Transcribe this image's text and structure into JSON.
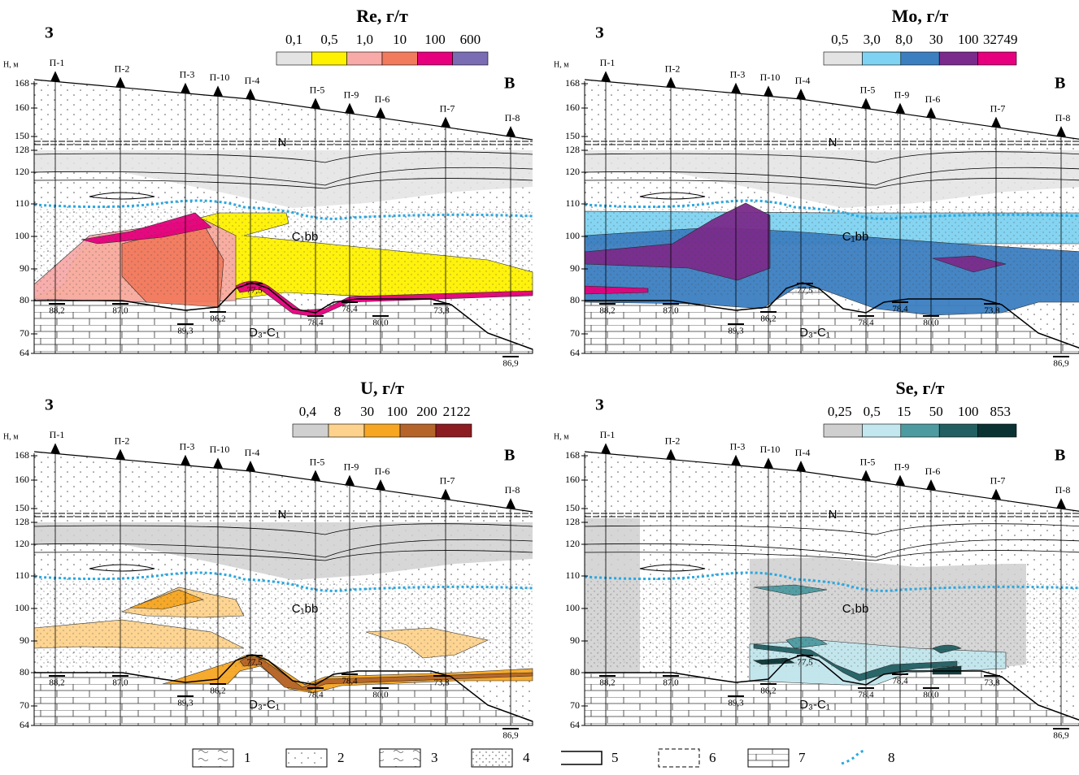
{
  "panels": [
    {
      "title": "Re, г/т",
      "scale": [
        "0,1",
        "0,5",
        "1,0",
        "10",
        "100",
        "600"
      ],
      "colors": [
        "#e3e3e3",
        "#fff200",
        "#f7aaa8",
        "#f27b5e",
        "#e6007e",
        "#7a6db3"
      ]
    },
    {
      "title": "Mo, г/т",
      "scale": [
        "0,5",
        "3,0",
        "8,0",
        "30",
        "100",
        "32749"
      ],
      "colors": [
        "#e3e3e3",
        "#7fd3f2",
        "#3c7fc1",
        "#7b2b8c",
        "#e6007e"
      ]
    },
    {
      "title": "U, г/т",
      "scale": [
        "0,4",
        "8",
        "30",
        "100",
        "200",
        "2122"
      ],
      "colors": [
        "#d0d0d0",
        "#fdd28c",
        "#f6a623",
        "#b5652a",
        "#8c1c22"
      ]
    },
    {
      "title": "Se, г/т",
      "scale": [
        "0,25",
        "0,5",
        "15",
        "50",
        "100",
        "853"
      ],
      "colors": [
        "#cfcfcf",
        "#c2e7ee",
        "#4d9ba1",
        "#215f62",
        "#0a3232"
      ]
    }
  ],
  "west": "З",
  "east": "В",
  "axis_title": "Н, м",
  "depth_ticks": [
    "168",
    "160",
    "150",
    "128",
    "120",
    "110",
    "100",
    "90",
    "80",
    "70",
    "64"
  ],
  "wells": [
    "П-1",
    "П-2",
    "П-3",
    "П-10",
    "П-4",
    "П-5",
    "П-9",
    "П-6",
    "П-7",
    "П-8"
  ],
  "well_depths": [
    "88,2",
    "87,0",
    "89,3",
    "86,2",
    "77,5",
    "78,4",
    "78,4",
    "80,0",
    "73,8",
    "86,9"
  ],
  "units": {
    "top": "N",
    "middle": "C₁bb",
    "bottom": "D₃-C₁"
  },
  "legend": [
    "1",
    "2",
    "3",
    "4",
    "5",
    "6",
    "7",
    "8"
  ]
}
